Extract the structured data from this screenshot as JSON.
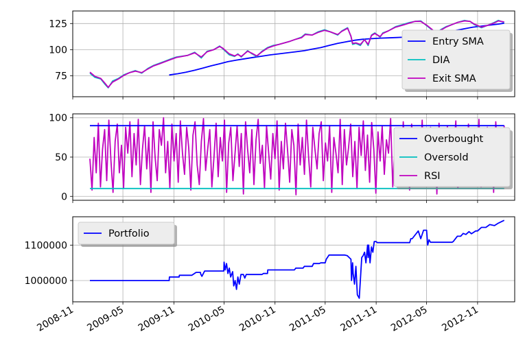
{
  "chart_data": [
    {
      "type": "line",
      "title": "",
      "xlabel": "",
      "ylabel": "",
      "xlim": [
        "2008-11-01",
        "2013-03-15"
      ],
      "ylim": [
        55,
        137
      ],
      "yticks": [
        75,
        100,
        125
      ],
      "grid": true,
      "legend": "right",
      "series": [
        {
          "name": "Entry SMA",
          "color": "#0000ff",
          "x": [
            "2009-10-15",
            "2009-11-15",
            "2009-12-15",
            "2010-01-15",
            "2010-02-15",
            "2010-03-15",
            "2010-04-15",
            "2010-05-15",
            "2010-06-15",
            "2010-07-15",
            "2010-08-15",
            "2010-09-15",
            "2010-10-15",
            "2010-11-15",
            "2010-12-15",
            "2011-01-15",
            "2011-02-15",
            "2011-03-15",
            "2011-04-15",
            "2011-05-15",
            "2011-06-15",
            "2011-07-15",
            "2011-08-15",
            "2011-09-15",
            "2011-10-15",
            "2011-11-15",
            "2011-12-15",
            "2012-01-15",
            "2012-02-15",
            "2012-03-15",
            "2012-04-15",
            "2012-05-15",
            "2012-06-15",
            "2012-07-15",
            "2012-08-15",
            "2012-09-15",
            "2012-10-15",
            "2012-11-15",
            "2012-12-15",
            "2013-01-15",
            "2013-02-05"
          ],
          "y": [
            75.8,
            77,
            78.5,
            80.3,
            82.5,
            84.5,
            86.5,
            88.5,
            90,
            91.3,
            92.6,
            93.8,
            95,
            96,
            97,
            98,
            99,
            100.5,
            102,
            104,
            106,
            107.5,
            109,
            110,
            110.5,
            111,
            111.3,
            111.6,
            112,
            113,
            114,
            115,
            116,
            117,
            118.5,
            120,
            121.5,
            122.5,
            123.5,
            124.5,
            125.3
          ]
        },
        {
          "name": "DIA",
          "color": "#00bfbf",
          "x": [
            "2009-01-02",
            "2009-01-20",
            "2009-02-10",
            "2009-02-25",
            "2009-03-09",
            "2009-03-25",
            "2009-04-15",
            "2009-05-05",
            "2009-05-25",
            "2009-06-15",
            "2009-07-08",
            "2009-07-30",
            "2009-08-20",
            "2009-09-10",
            "2009-09-30",
            "2009-10-20",
            "2009-11-10",
            "2009-12-01",
            "2009-12-20",
            "2010-01-15",
            "2010-02-08",
            "2010-03-01",
            "2010-03-25",
            "2010-04-15",
            "2010-04-26",
            "2010-05-20",
            "2010-06-08",
            "2010-06-20",
            "2010-07-02",
            "2010-07-25",
            "2010-08-10",
            "2010-08-27",
            "2010-09-15",
            "2010-10-05",
            "2010-10-25",
            "2010-11-15",
            "2010-12-05",
            "2010-12-25",
            "2011-01-15",
            "2011-02-05",
            "2011-02-18",
            "2011-03-15",
            "2011-04-05",
            "2011-04-29",
            "2011-05-20",
            "2011-06-15",
            "2011-06-30",
            "2011-07-21",
            "2011-08-02",
            "2011-08-08",
            "2011-08-20",
            "2011-09-05",
            "2011-09-20",
            "2011-10-03",
            "2011-10-15",
            "2011-10-27",
            "2011-11-15",
            "2011-11-25",
            "2011-12-15",
            "2012-01-10",
            "2012-02-05",
            "2012-03-01",
            "2012-03-20",
            "2012-04-10",
            "2012-05-01",
            "2012-05-20",
            "2012-06-04",
            "2012-06-20",
            "2012-07-10",
            "2012-08-01",
            "2012-08-20",
            "2012-09-15",
            "2012-10-05",
            "2012-10-20",
            "2012-11-15",
            "2012-12-05",
            "2012-12-31",
            "2013-01-15",
            "2013-02-05"
          ],
          "y": [
            77.5,
            73.5,
            72,
            67,
            63.5,
            70,
            72.5,
            76,
            78,
            80,
            77.5,
            82,
            85,
            87,
            89,
            91,
            93,
            93.8,
            94.5,
            97.5,
            92,
            98.5,
            100,
            103.5,
            101,
            95,
            93.5,
            96,
            93,
            99,
            96,
            93.5,
            98.5,
            102,
            104,
            105,
            106.5,
            108,
            110,
            112,
            115,
            114,
            117,
            119,
            117,
            114,
            118,
            121,
            112.5,
            105,
            106,
            104,
            110,
            104,
            114,
            116,
            112,
            116,
            118,
            122,
            124,
            126,
            127,
            127.5,
            123,
            119,
            115.5,
            119,
            122,
            124,
            126,
            128,
            127,
            124,
            121,
            123,
            126,
            128,
            126
          ]
        },
        {
          "name": "Exit SMA",
          "color": "#bf00bf",
          "x": [
            "2009-01-02",
            "2009-01-20",
            "2009-02-10",
            "2009-02-25",
            "2009-03-09",
            "2009-03-25",
            "2009-04-15",
            "2009-05-05",
            "2009-05-25",
            "2009-06-15",
            "2009-07-08",
            "2009-07-30",
            "2009-08-20",
            "2009-09-10",
            "2009-09-30",
            "2009-10-20",
            "2009-11-10",
            "2009-12-01",
            "2009-12-20",
            "2010-01-15",
            "2010-02-08",
            "2010-03-01",
            "2010-03-25",
            "2010-04-15",
            "2010-04-26",
            "2010-05-20",
            "2010-06-08",
            "2010-06-20",
            "2010-07-02",
            "2010-07-25",
            "2010-08-10",
            "2010-08-27",
            "2010-09-15",
            "2010-10-05",
            "2010-10-25",
            "2010-11-15",
            "2010-12-05",
            "2010-12-25",
            "2011-01-15",
            "2011-02-05",
            "2011-02-18",
            "2011-03-15",
            "2011-04-05",
            "2011-04-29",
            "2011-05-20",
            "2011-06-15",
            "2011-06-30",
            "2011-07-21",
            "2011-08-02",
            "2011-08-08",
            "2011-08-20",
            "2011-09-05",
            "2011-09-20",
            "2011-10-03",
            "2011-10-15",
            "2011-10-27",
            "2011-11-15",
            "2011-11-25",
            "2011-12-15",
            "2012-01-10",
            "2012-02-05",
            "2012-03-01",
            "2012-03-20",
            "2012-04-10",
            "2012-05-01",
            "2012-05-20",
            "2012-06-04",
            "2012-06-20",
            "2012-07-10",
            "2012-08-01",
            "2012-08-20",
            "2012-09-15",
            "2012-10-05",
            "2012-10-20",
            "2012-11-15",
            "2012-12-05",
            "2012-12-31",
            "2013-01-15",
            "2013-02-05"
          ],
          "y": [
            78.5,
            74.5,
            72.5,
            68,
            64,
            69,
            72,
            75.5,
            78,
            79.5,
            78,
            81.5,
            84.5,
            86.5,
            88.5,
            90.5,
            92.5,
            93.5,
            94.5,
            97,
            93,
            98,
            100,
            103,
            101.5,
            96,
            94,
            95.5,
            93.5,
            98.5,
            96.5,
            94,
            98,
            101.5,
            103.5,
            105,
            106.5,
            108,
            110,
            111.5,
            114.5,
            114,
            116.5,
            118.5,
            117,
            114.5,
            117.5,
            120.5,
            113,
            106,
            106.5,
            105,
            109.5,
            105,
            113.5,
            115.5,
            112.5,
            115.5,
            118,
            121.5,
            123.5,
            125.5,
            127,
            127,
            123.5,
            119.5,
            116,
            118.5,
            121.5,
            124,
            126,
            127.5,
            127,
            124.5,
            121.5,
            123,
            125.5,
            127.5,
            126.5
          ]
        }
      ]
    },
    {
      "type": "line",
      "title": "",
      "xlabel": "",
      "ylabel": "",
      "xlim": [
        "2008-11-01",
        "2013-03-15"
      ],
      "ylim": [
        -5,
        105
      ],
      "yticks": [
        0,
        50,
        100
      ],
      "grid": true,
      "legend": "right",
      "series": [
        {
          "name": "Overbought",
          "color": "#0000ff",
          "x": [
            "2009-01-02",
            "2013-02-05"
          ],
          "y": [
            90,
            90
          ]
        },
        {
          "name": "Oversold",
          "color": "#00bfbf",
          "x": [
            "2009-01-02",
            "2013-02-05"
          ],
          "y": [
            10,
            10
          ]
        },
        {
          "name": "RSI",
          "color": "#bf00bf",
          "x_start": "2009-01-02",
          "x_end": "2013-02-05",
          "y": [
            48,
            8,
            75,
            30,
            93,
            12,
            60,
            85,
            20,
            97,
            45,
            5,
            70,
            92,
            30,
            65,
            10,
            88,
            55,
            95,
            25,
            80,
            40,
            98,
            15,
            60,
            90,
            35,
            75,
            5,
            95,
            50,
            20,
            85,
            65,
            100,
            30,
            70,
            10,
            92,
            45,
            80,
            18,
            96,
            55,
            28,
            88,
            62,
            8,
            78,
            95,
            40,
            15,
            70,
            99,
            33,
            60,
            85,
            12,
            50,
            93,
            25,
            75,
            45,
            97,
            5,
            68,
            88,
            20,
            55,
            90,
            38,
            80,
            3,
            95,
            60,
            30,
            85,
            15,
            72,
            98,
            42,
            65,
            10,
            90,
            55,
            22,
            80,
            48,
            96,
            8,
            70,
            35,
            93,
            58,
            18,
            85,
            65,
            2,
            92,
            40,
            75,
            28,
            97,
            50,
            12,
            88,
            60,
            35,
            80,
            95,
            20,
            68,
            45,
            90,
            5,
            75,
            55,
            30,
            98,
            15,
            85,
            40,
            62,
            92,
            25,
            70,
            10,
            88,
            52,
            96,
            33,
            78,
            18,
            94,
            60,
            4,
            82,
            45,
            90,
            28,
            72,
            55,
            99,
            12,
            66,
            38,
            86,
            20,
            95,
            48,
            75,
            8,
            92,
            60,
            30,
            85,
            42,
            97,
            15,
            70,
            55,
            88,
            25,
            80,
            3,
            93,
            50,
            65,
            35,
            90,
            18,
            78,
            58,
            96,
            10,
            68,
            45,
            85,
            30,
            92,
            55,
            20,
            82,
            40,
            98,
            12,
            72,
            60,
            88,
            25,
            75,
            5,
            95,
            48,
            65,
            35,
            90
          ]
        }
      ]
    },
    {
      "type": "line",
      "title": "",
      "xlabel": "",
      "ylabel": "",
      "xlim": [
        "2008-11-01",
        "2013-03-15"
      ],
      "ylim": [
        940000,
        1180000
      ],
      "yticks": [
        1000000,
        1100000
      ],
      "x_tick_labels": [
        "2008-11",
        "2009-05",
        "2009-11",
        "2010-05",
        "2010-11",
        "2011-05",
        "2011-11",
        "2012-05",
        "2012-11"
      ],
      "grid": true,
      "legend": "top-left",
      "series": [
        {
          "name": "Portfolio",
          "color": "#0000ff",
          "x": [
            "2009-01-02",
            "2009-10-15",
            "2009-10-16",
            "2009-11-20",
            "2009-11-21",
            "2010-01-05",
            "2010-01-20",
            "2010-02-05",
            "2010-02-06",
            "2010-02-10",
            "2010-02-20",
            "2010-04-30",
            "2010-05-01",
            "2010-05-05",
            "2010-05-10",
            "2010-05-15",
            "2010-05-20",
            "2010-05-25",
            "2010-06-01",
            "2010-06-05",
            "2010-06-10",
            "2010-06-15",
            "2010-06-20",
            "2010-06-25",
            "2010-07-01",
            "2010-07-10",
            "2010-07-15",
            "2010-07-20",
            "2010-08-01",
            "2010-09-15",
            "2010-09-20",
            "2010-10-05",
            "2010-10-06",
            "2011-01-10",
            "2011-01-15",
            "2011-02-10",
            "2011-02-15",
            "2011-03-15",
            "2011-03-20",
            "2011-04-10",
            "2011-04-15",
            "2011-05-01",
            "2011-05-05",
            "2011-05-15",
            "2011-06-01",
            "2011-06-20",
            "2011-07-10",
            "2011-07-20",
            "2011-08-02",
            "2011-08-04",
            "2011-08-08",
            "2011-08-10",
            "2011-08-15",
            "2011-08-20",
            "2011-08-25",
            "2011-09-01",
            "2011-09-10",
            "2011-09-15",
            "2011-09-20",
            "2011-09-25",
            "2011-10-01",
            "2011-10-03",
            "2011-10-05",
            "2011-10-10",
            "2011-10-15",
            "2011-10-20",
            "2011-10-25",
            "2011-11-01",
            "2011-11-05",
            "2011-11-10",
            "2012-03-01",
            "2012-03-05",
            "2012-03-10",
            "2012-04-01",
            "2012-04-10",
            "2012-04-20",
            "2012-05-01",
            "2012-05-05",
            "2012-05-10",
            "2012-05-15",
            "2012-05-20",
            "2012-08-01",
            "2012-08-05",
            "2012-08-20",
            "2012-09-01",
            "2012-09-10",
            "2012-09-20",
            "2012-10-01",
            "2012-10-10",
            "2012-10-25",
            "2012-11-01",
            "2012-11-15",
            "2012-12-01",
            "2012-12-15",
            "2013-01-01",
            "2013-01-15",
            "2013-02-05"
          ],
          "y": [
            1000000,
            1000000,
            1010000,
            1010000,
            1015000,
            1015000,
            1023000,
            1023000,
            1018000,
            1012000,
            1027000,
            1027000,
            1052000,
            1030000,
            1048000,
            1020000,
            1035000,
            1010000,
            1025000,
            985000,
            1000000,
            975000,
            1010000,
            990000,
            1017000,
            1017000,
            1007000,
            1017000,
            1017000,
            1017000,
            1020000,
            1020000,
            1030000,
            1030000,
            1035000,
            1035000,
            1040000,
            1040000,
            1048000,
            1048000,
            1050000,
            1050000,
            1060000,
            1072000,
            1072000,
            1072000,
            1072000,
            1070000,
            1060000,
            1000000,
            1050000,
            1020000,
            990000,
            1040000,
            960000,
            950000,
            1065000,
            1070000,
            1080000,
            1050000,
            1100000,
            1065000,
            1100000,
            1050000,
            1095000,
            1080000,
            1110000,
            1110000,
            1107000,
            1107000,
            1107000,
            1118000,
            1118000,
            1140000,
            1118000,
            1142000,
            1142000,
            1100000,
            1115000,
            1108000,
            1108000,
            1108000,
            1110000,
            1125000,
            1125000,
            1133000,
            1130000,
            1138000,
            1132000,
            1140000,
            1140000,
            1150000,
            1150000,
            1158000,
            1155000,
            1162000,
            1170000
          ]
        }
      ]
    }
  ]
}
